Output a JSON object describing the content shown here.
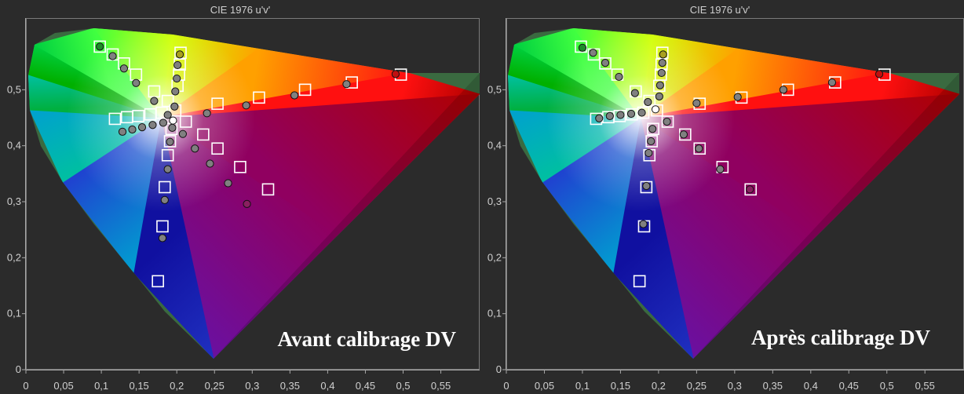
{
  "chart_data": [
    {
      "type": "scatter",
      "title": "CIE 1976 u'v'",
      "caption": "Avant calibrage DV",
      "xlim": [
        0,
        0.6
      ],
      "ylim": [
        0,
        0.6
      ],
      "x_ticks": [
        "0",
        "0,05",
        "0,1",
        "0,15",
        "0,2",
        "0,25",
        "0,3",
        "0,35",
        "0,4",
        "0,45",
        "0,5",
        "0,55"
      ],
      "y_ticks": [
        "0",
        "0,1",
        "0,2",
        "0,3",
        "0,4",
        "0,5"
      ],
      "grid": false,
      "targets": [
        [
          0.098,
          0.577
        ],
        [
          0.115,
          0.563
        ],
        [
          0.13,
          0.547
        ],
        [
          0.146,
          0.527
        ],
        [
          0.17,
          0.497
        ],
        [
          0.188,
          0.48
        ],
        [
          0.205,
          0.566
        ],
        [
          0.204,
          0.545
        ],
        [
          0.203,
          0.527
        ],
        [
          0.201,
          0.507
        ],
        [
          0.497,
          0.527
        ],
        [
          0.432,
          0.513
        ],
        [
          0.37,
          0.5
        ],
        [
          0.309,
          0.486
        ],
        [
          0.254,
          0.475
        ],
        [
          0.321,
          0.322
        ],
        [
          0.284,
          0.362
        ],
        [
          0.254,
          0.395
        ],
        [
          0.235,
          0.42
        ],
        [
          0.212,
          0.443
        ],
        [
          0.175,
          0.158
        ],
        [
          0.181,
          0.256
        ],
        [
          0.184,
          0.326
        ],
        [
          0.188,
          0.383
        ],
        [
          0.191,
          0.408
        ],
        [
          0.193,
          0.43
        ],
        [
          0.118,
          0.448
        ],
        [
          0.134,
          0.451
        ],
        [
          0.149,
          0.453
        ],
        [
          0.165,
          0.456
        ],
        [
          0.18,
          0.459
        ],
        [
          0.198,
          0.463
        ]
      ],
      "measured": [
        [
          0.098,
          0.577,
          "#1e8a2a"
        ],
        [
          0.115,
          0.56,
          "#808080"
        ],
        [
          0.13,
          0.538,
          "#808080"
        ],
        [
          0.146,
          0.512,
          "#808080"
        ],
        [
          0.17,
          0.48,
          "#808080"
        ],
        [
          0.188,
          0.455,
          "#808080"
        ],
        [
          0.204,
          0.563,
          "#a8a020"
        ],
        [
          0.201,
          0.544,
          "#808080"
        ],
        [
          0.2,
          0.52,
          "#808080"
        ],
        [
          0.198,
          0.497,
          "#808080"
        ],
        [
          0.197,
          0.47,
          "#808080"
        ],
        [
          0.49,
          0.528,
          "#c01010"
        ],
        [
          0.425,
          0.51,
          "#808080"
        ],
        [
          0.356,
          0.49,
          "#808080"
        ],
        [
          0.292,
          0.472,
          "#808080"
        ],
        [
          0.24,
          0.458,
          "#808080"
        ],
        [
          0.293,
          0.296,
          "#8a2060"
        ],
        [
          0.268,
          0.333,
          "#808080"
        ],
        [
          0.244,
          0.368,
          "#808080"
        ],
        [
          0.224,
          0.395,
          "#808080"
        ],
        [
          0.208,
          0.421,
          "#808080"
        ],
        [
          0.181,
          0.235,
          "#808080"
        ],
        [
          0.184,
          0.303,
          "#808080"
        ],
        [
          0.188,
          0.358,
          "#808080"
        ],
        [
          0.191,
          0.407,
          "#808080"
        ],
        [
          0.194,
          0.432,
          "#808080"
        ],
        [
          0.128,
          0.425,
          "#808080"
        ],
        [
          0.141,
          0.429,
          "#808080"
        ],
        [
          0.154,
          0.433,
          "#808080"
        ],
        [
          0.168,
          0.437,
          "#808080"
        ],
        [
          0.182,
          0.441,
          "#808080"
        ],
        [
          0.195,
          0.445,
          "#ffffff"
        ]
      ]
    },
    {
      "type": "scatter",
      "title": "CIE 1976 u'v'",
      "caption": "Après calibrage DV",
      "xlim": [
        0,
        0.6
      ],
      "ylim": [
        0,
        0.6
      ],
      "x_ticks": [
        "0",
        "0,05",
        "0,1",
        "0,15",
        "0,2",
        "0,25",
        "0,3",
        "0,35",
        "0,4",
        "0,45",
        "0,5",
        "0,55"
      ],
      "y_ticks": [
        "0",
        "0,1",
        "0,2",
        "0,3",
        "0,4",
        "0,5"
      ],
      "grid": false,
      "targets": [
        [
          0.098,
          0.577
        ],
        [
          0.115,
          0.563
        ],
        [
          0.13,
          0.547
        ],
        [
          0.146,
          0.527
        ],
        [
          0.17,
          0.497
        ],
        [
          0.188,
          0.48
        ],
        [
          0.205,
          0.566
        ],
        [
          0.204,
          0.545
        ],
        [
          0.203,
          0.527
        ],
        [
          0.201,
          0.507
        ],
        [
          0.497,
          0.527
        ],
        [
          0.432,
          0.513
        ],
        [
          0.37,
          0.5
        ],
        [
          0.309,
          0.486
        ],
        [
          0.254,
          0.475
        ],
        [
          0.321,
          0.322
        ],
        [
          0.284,
          0.362
        ],
        [
          0.254,
          0.395
        ],
        [
          0.235,
          0.42
        ],
        [
          0.212,
          0.443
        ],
        [
          0.175,
          0.158
        ],
        [
          0.181,
          0.256
        ],
        [
          0.184,
          0.326
        ],
        [
          0.188,
          0.383
        ],
        [
          0.191,
          0.408
        ],
        [
          0.193,
          0.43
        ],
        [
          0.118,
          0.448
        ],
        [
          0.134,
          0.451
        ],
        [
          0.149,
          0.453
        ],
        [
          0.165,
          0.456
        ],
        [
          0.18,
          0.459
        ],
        [
          0.198,
          0.463
        ]
      ],
      "measured": [
        [
          0.1,
          0.575,
          "#1e8a2a"
        ],
        [
          0.114,
          0.566,
          "#808080"
        ],
        [
          0.13,
          0.548,
          "#808080"
        ],
        [
          0.148,
          0.523,
          "#808080"
        ],
        [
          0.169,
          0.494,
          "#808080"
        ],
        [
          0.186,
          0.478,
          "#808080"
        ],
        [
          0.206,
          0.563,
          "#a8a020"
        ],
        [
          0.205,
          0.548,
          "#808080"
        ],
        [
          0.204,
          0.53,
          "#808080"
        ],
        [
          0.202,
          0.508,
          "#808080"
        ],
        [
          0.201,
          0.488,
          "#808080"
        ],
        [
          0.49,
          0.528,
          "#c01010"
        ],
        [
          0.428,
          0.513,
          "#808080"
        ],
        [
          0.364,
          0.5,
          "#808080"
        ],
        [
          0.304,
          0.487,
          "#808080"
        ],
        [
          0.25,
          0.476,
          "#808080"
        ],
        [
          0.32,
          0.322,
          "#8a2060"
        ],
        [
          0.281,
          0.358,
          "#808080"
        ],
        [
          0.253,
          0.395,
          "#808080"
        ],
        [
          0.233,
          0.42,
          "#808080"
        ],
        [
          0.211,
          0.443,
          "#808080"
        ],
        [
          0.18,
          0.26,
          "#808080"
        ],
        [
          0.184,
          0.328,
          "#808080"
        ],
        [
          0.187,
          0.387,
          "#808080"
        ],
        [
          0.19,
          0.408,
          "#808080"
        ],
        [
          0.192,
          0.43,
          "#808080"
        ],
        [
          0.122,
          0.449,
          "#808080"
        ],
        [
          0.136,
          0.453,
          "#808080"
        ],
        [
          0.15,
          0.455,
          "#808080"
        ],
        [
          0.164,
          0.457,
          "#808080"
        ],
        [
          0.178,
          0.459,
          "#808080"
        ],
        [
          0.196,
          0.465,
          "#ffffff"
        ]
      ]
    }
  ]
}
